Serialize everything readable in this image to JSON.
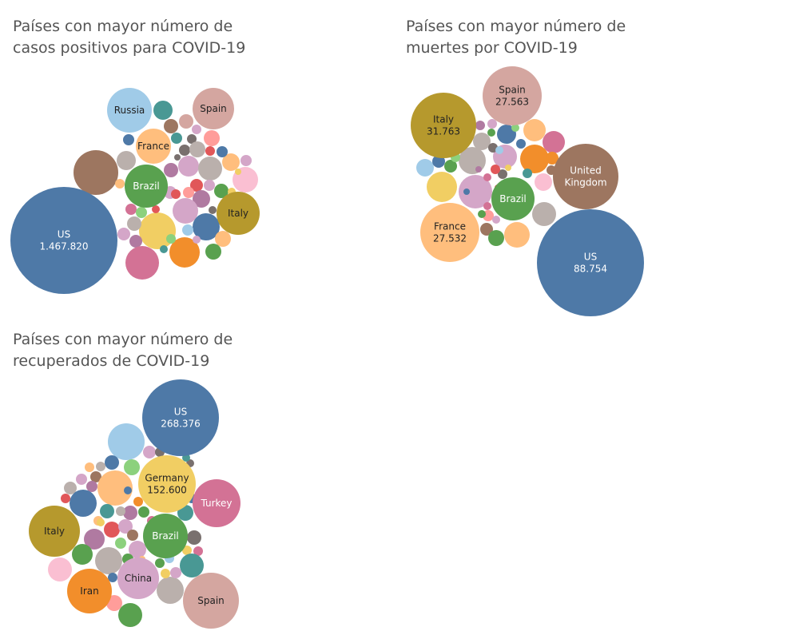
{
  "chart_data": [
    {
      "type": "bubble",
      "title_line1": "Países con mayor número de",
      "title_line2": "casos positivos para COVID-19",
      "labeled": [
        {
          "name": "US",
          "value": "1.467.820",
          "color": "#4e79a7"
        },
        {
          "name": "Russia",
          "color": "#a0cbe8"
        },
        {
          "name": "Spain",
          "color": "#d4a6a0"
        },
        {
          "name": "France",
          "color": "#ffbe7d"
        },
        {
          "name": "Brazil",
          "color": "#59a14f"
        },
        {
          "name": "Italy",
          "color": "#b6992d"
        }
      ]
    },
    {
      "type": "bubble",
      "title_line1": "Países con mayor número de",
      "title_line2": "muertes por COVID-19",
      "labeled": [
        {
          "name": "Italy",
          "value": "31.763",
          "color": "#b6992d"
        },
        {
          "name": "Spain",
          "value": "27.563",
          "color": "#d4a6a0"
        },
        {
          "name": "United",
          "name2": "Kingdom",
          "color": "#9d7660"
        },
        {
          "name": "France",
          "value": "27.532",
          "color": "#ffbe7d"
        },
        {
          "name": "Brazil",
          "color": "#59a14f"
        },
        {
          "name": "US",
          "value": "88.754",
          "color": "#4e79a7"
        }
      ]
    },
    {
      "type": "bubble",
      "title_line1": "Países con mayor número de",
      "title_line2": "recuperados de COVID-19",
      "labeled": [
        {
          "name": "US",
          "value": "268.376",
          "color": "#4e79a7"
        },
        {
          "name": "Germany",
          "value": "152.600",
          "color": "#f1ce63"
        },
        {
          "name": "Turkey",
          "color": "#d37295"
        },
        {
          "name": "Italy",
          "color": "#b6992d"
        },
        {
          "name": "Brazil",
          "color": "#59a14f"
        },
        {
          "name": "China",
          "color": "#d4a6c8"
        },
        {
          "name": "Iran",
          "color": "#f28e2b"
        },
        {
          "name": "Spain",
          "color": "#d4a6a0"
        }
      ]
    }
  ]
}
